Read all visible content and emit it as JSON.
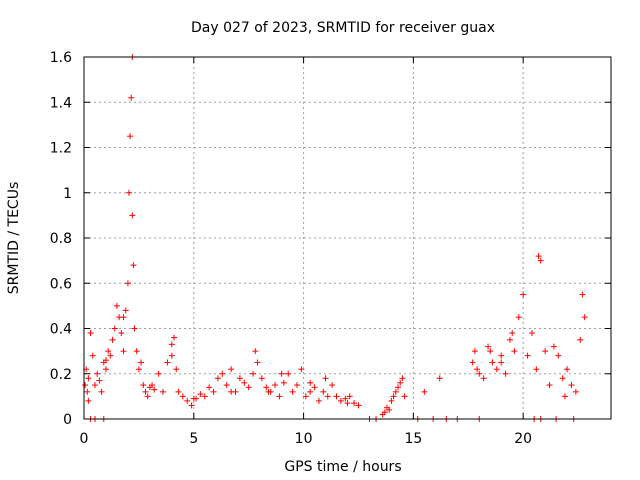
{
  "chart_data": {
    "type": "scatter",
    "title": "Day 027 of 2023, SRMTID for receiver guax",
    "xlabel": "GPS time / hours",
    "ylabel": "SRMTID / TECUs",
    "xlim": [
      0,
      24
    ],
    "ylim": [
      0,
      1.6
    ],
    "x_ticks": [
      0,
      5,
      10,
      15,
      20
    ],
    "x_tick_labels": [
      "0",
      "5",
      "10",
      "15",
      "20"
    ],
    "y_ticks": [
      0,
      0.2,
      0.4,
      0.6,
      0.8,
      1,
      1.2,
      1.4,
      1.6
    ],
    "y_tick_labels": [
      "0",
      "0.2",
      "0.4",
      "0.6",
      "0.8",
      "1",
      "1.2",
      "1.4",
      "1.6"
    ],
    "grid": true,
    "marker": "plus",
    "color": "#ff0000",
    "series": [
      {
        "name": "SRMTID",
        "x": [
          0.05,
          0.1,
          0.15,
          0.2,
          0.3,
          0.4,
          0.5,
          0.6,
          0.7,
          0.8,
          0.9,
          1.0,
          1.1,
          1.2,
          1.3,
          1.4,
          1.5,
          1.6,
          1.7,
          1.8,
          1.9,
          2.0,
          2.05,
          2.1,
          2.15,
          2.2,
          2.25,
          2.3,
          2.4,
          2.5,
          2.6,
          2.7,
          2.8,
          2.9,
          3.0,
          3.2,
          3.4,
          3.6,
          3.8,
          4.0,
          4.1,
          4.2,
          4.3,
          4.5,
          4.7,
          4.9,
          5.1,
          5.3,
          5.5,
          5.7,
          5.9,
          6.1,
          6.3,
          6.5,
          6.7,
          6.9,
          7.1,
          7.3,
          7.5,
          7.7,
          7.9,
          8.1,
          8.3,
          8.5,
          8.7,
          8.9,
          9.1,
          9.3,
          9.5,
          9.7,
          9.9,
          10.1,
          10.3,
          10.5,
          10.7,
          10.9,
          11.1,
          11.3,
          11.5,
          11.7,
          11.9,
          12.1,
          12.3,
          12.5,
          13.6,
          13.7,
          13.8,
          13.9,
          14.0,
          14.1,
          14.2,
          14.3,
          14.4,
          14.5,
          14.6,
          15.5,
          16.2,
          17.7,
          17.8,
          17.9,
          18.0,
          18.2,
          18.4,
          18.6,
          18.8,
          19.0,
          19.2,
          19.4,
          19.6,
          19.8,
          20.0,
          20.2,
          20.4,
          20.6,
          20.8,
          21.0,
          21.2,
          21.4,
          21.6,
          21.8,
          22.0,
          22.2,
          22.4,
          22.6,
          22.7,
          22.8,
          0.3,
          0.5,
          0.9,
          13.0,
          13.3,
          15.2,
          15.9,
          16.5,
          17.0,
          18.0,
          20.5,
          20.8,
          21.5,
          22.3,
          0.2,
          1.8,
          2.2,
          4.0,
          6.7,
          7.8,
          9.0,
          11.0,
          18.5,
          19.5,
          20.7,
          1.0,
          3.1,
          5.0,
          8.4,
          10.3,
          12.0,
          19.0,
          21.9
        ],
        "y": [
          0.15,
          0.22,
          0.12,
          0.18,
          0.38,
          0.28,
          0.15,
          0.2,
          0.17,
          0.12,
          0.25,
          0.22,
          0.3,
          0.28,
          0.35,
          0.4,
          0.5,
          0.45,
          0.38,
          0.3,
          0.48,
          0.6,
          1.0,
          1.25,
          1.42,
          1.6,
          0.68,
          0.4,
          0.3,
          0.22,
          0.25,
          0.15,
          0.12,
          0.1,
          0.14,
          0.13,
          0.2,
          0.12,
          0.25,
          0.33,
          0.36,
          0.22,
          0.12,
          0.1,
          0.08,
          0.06,
          0.09,
          0.11,
          0.1,
          0.14,
          0.12,
          0.18,
          0.2,
          0.15,
          0.22,
          0.12,
          0.18,
          0.16,
          0.14,
          0.2,
          0.25,
          0.18,
          0.14,
          0.12,
          0.15,
          0.1,
          0.16,
          0.2,
          0.12,
          0.15,
          0.22,
          0.1,
          0.12,
          0.14,
          0.08,
          0.12,
          0.1,
          0.15,
          0.1,
          0.08,
          0.09,
          0.1,
          0.07,
          0.06,
          0.02,
          0.03,
          0.05,
          0.04,
          0.08,
          0.1,
          0.12,
          0.14,
          0.16,
          0.18,
          0.1,
          0.12,
          0.18,
          0.25,
          0.3,
          0.22,
          0.2,
          0.18,
          0.32,
          0.25,
          0.22,
          0.28,
          0.2,
          0.35,
          0.3,
          0.45,
          0.55,
          0.28,
          0.38,
          0.22,
          0.7,
          0.3,
          0.15,
          0.32,
          0.28,
          0.18,
          0.22,
          0.15,
          0.12,
          0.35,
          0.55,
          0.45,
          0.0,
          0.0,
          0.0,
          0.0,
          0.0,
          0.0,
          0.0,
          0.0,
          0.0,
          0.0,
          0.0,
          0.0,
          0.0,
          0.0,
          0.08,
          0.45,
          0.9,
          0.28,
          0.12,
          0.3,
          0.2,
          0.18,
          0.3,
          0.38,
          0.72,
          0.26,
          0.15,
          0.09,
          0.12,
          0.16,
          0.07,
          0.25,
          0.1
        ]
      }
    ]
  }
}
